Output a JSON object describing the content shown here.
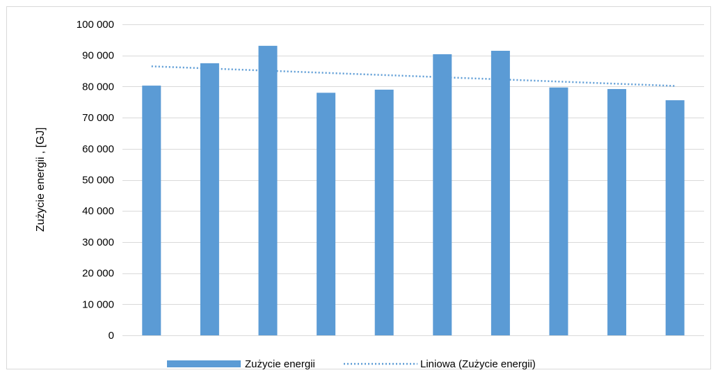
{
  "chart_data": {
    "type": "bar",
    "title": "",
    "xlabel": "",
    "ylabel": "Zużycie energii , [GJ]",
    "ylim": [
      0,
      100000
    ],
    "yticks": [
      "0",
      "10 000",
      "20 000",
      "30 000",
      "40 000",
      "50 000",
      "60 000",
      "70 000",
      "80 000",
      "90 000",
      "100 000"
    ],
    "ytick_values": [
      0,
      10000,
      20000,
      30000,
      40000,
      50000,
      60000,
      70000,
      80000,
      90000,
      100000
    ],
    "grid": true,
    "legend_position": "bottom",
    "series": [
      {
        "name": "Zużycie energii",
        "values": [
          80300,
          87500,
          93100,
          78000,
          79000,
          90400,
          91500,
          79700,
          79200,
          75600
        ],
        "color": "#5b9bd5"
      }
    ],
    "trendline": {
      "name": "Liniowa (Zużycie energii)",
      "type": "linear",
      "start": 86500,
      "end": 80200,
      "color": "#5b9bd5",
      "style": "dotted"
    }
  }
}
